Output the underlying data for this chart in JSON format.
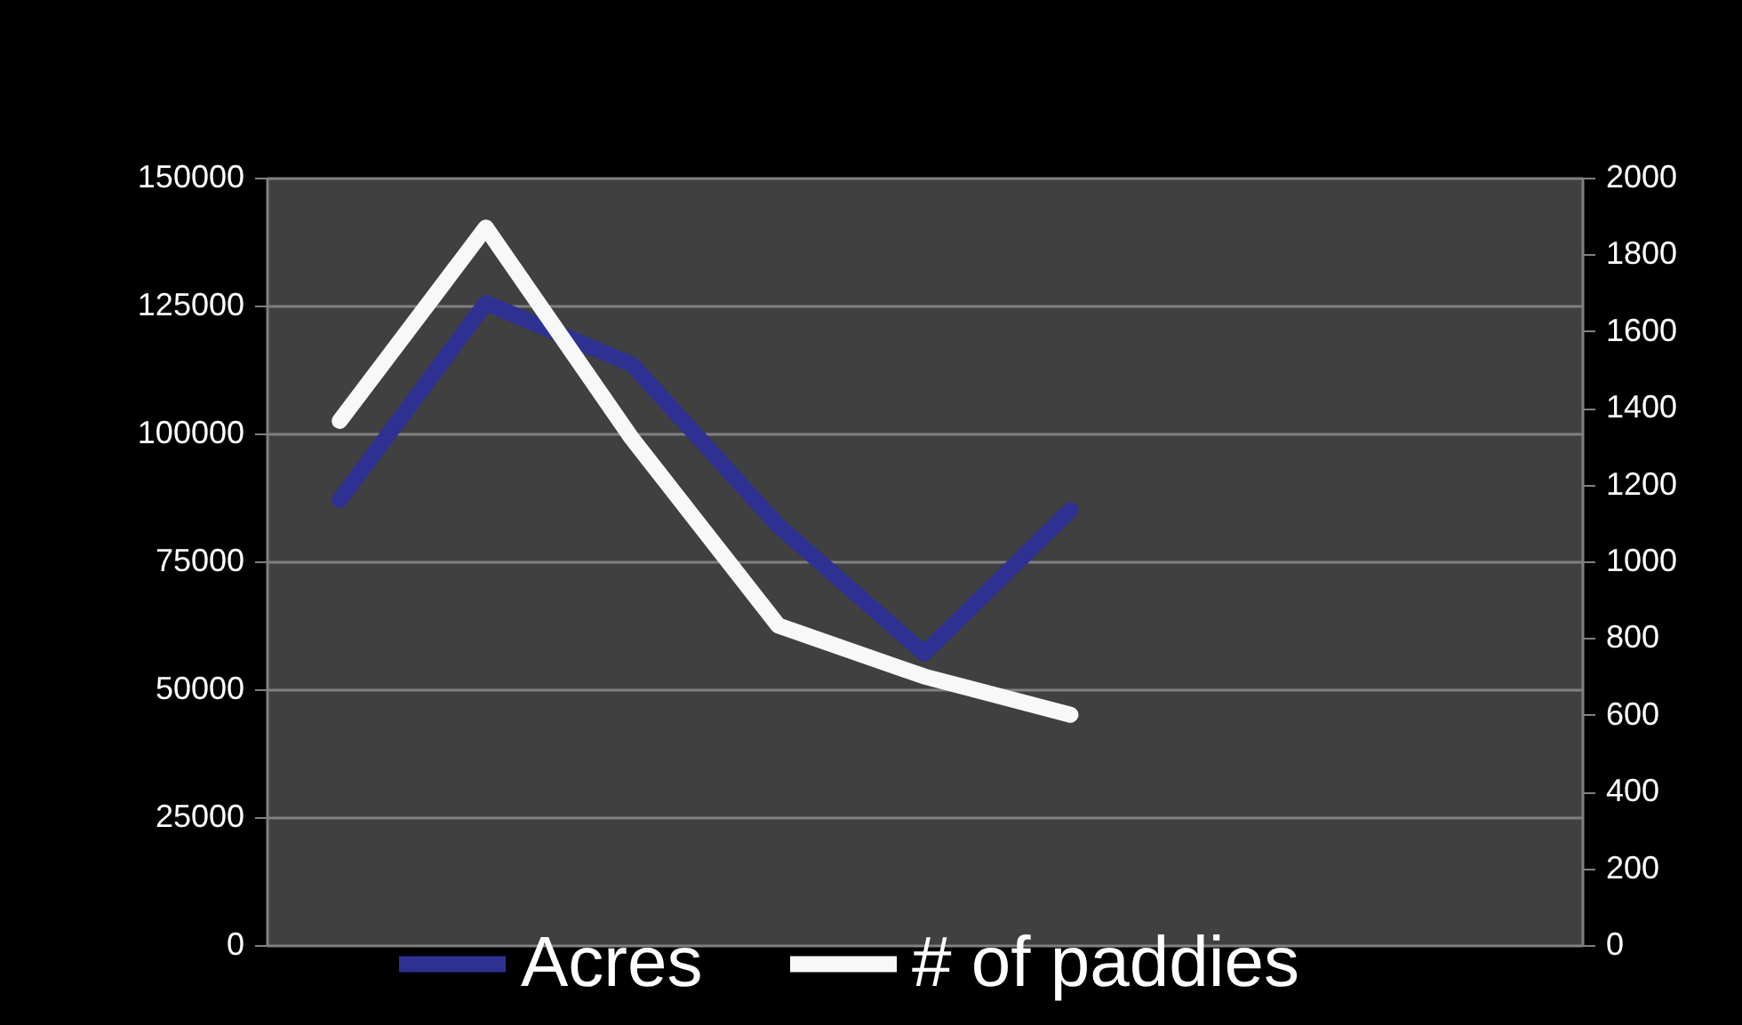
{
  "chart_data": {
    "type": "line",
    "categories": [
      null,
      null,
      null,
      null,
      null,
      null,
      null,
      null,
      null
    ],
    "series": [
      {
        "name": "Acres",
        "color": "#2e3192",
        "values": [
          87000,
          125500,
          113500,
          82000,
          57000,
          85000,
          null,
          null,
          null
        ]
      },
      {
        "name": "# of paddies",
        "color": "#f8f8f8",
        "axis": "y2",
        "values": [
          1366,
          1870,
          1320,
          833,
          700,
          600,
          null,
          null,
          null
        ]
      }
    ],
    "ylim": [
      0,
      150000
    ],
    "yticks": [
      0,
      25000,
      50000,
      75000,
      100000,
      125000,
      150000
    ],
    "y2lim": [
      0,
      2000
    ],
    "y2ticks": [
      0,
      200,
      400,
      600,
      800,
      1000,
      1200,
      1400,
      1600,
      1800,
      2000
    ],
    "grid": "y",
    "legend": "bottom",
    "tick_labels": "y",
    "line_style": "solid"
  }
}
